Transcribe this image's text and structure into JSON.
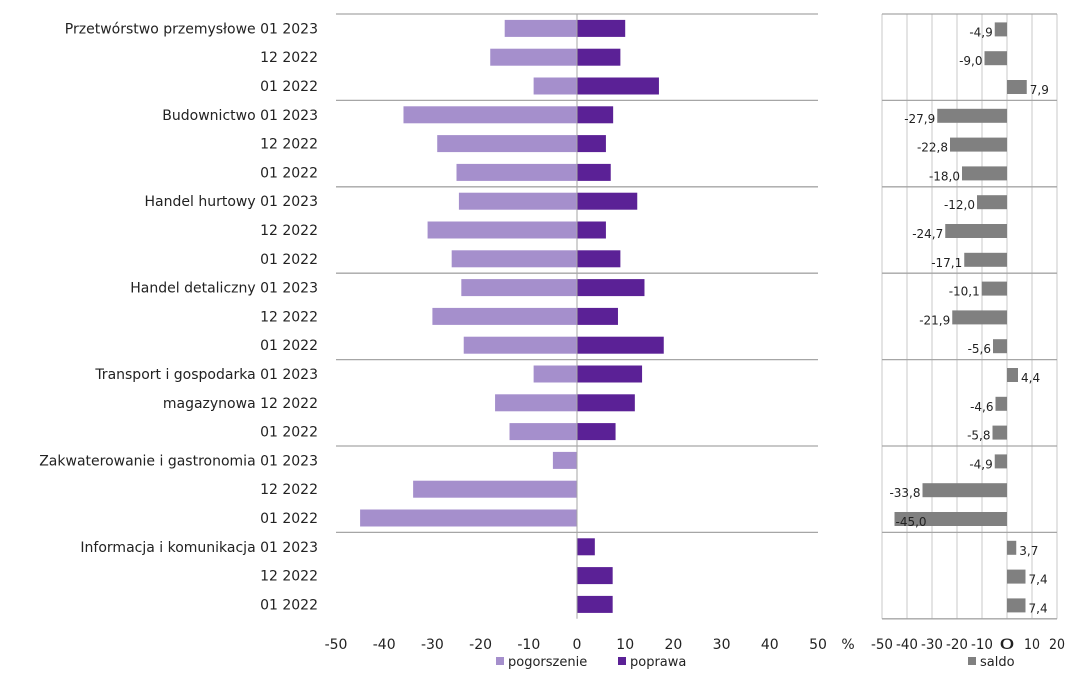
{
  "colors": {
    "pogorszenie": "#a58fcc",
    "poprawa": "#5b2196",
    "saldo": "#808080",
    "separator": "#a6a6a6",
    "grid": "#c8c8c8"
  },
  "chart_data": [
    {
      "type": "bar",
      "orientation": "horizontal",
      "stacked_diverging": true,
      "categories": [
        "Przetwórstwo przemysłowe 01 2023",
        "12 2022",
        "01 2022",
        "Budownictwo 01 2023",
        "12 2022",
        "01 2022",
        "Handel hurtowy 01 2023",
        "12 2022",
        "01 2022",
        "Handel detaliczny 01 2023",
        "12 2022",
        "01 2022",
        "Transport i gospodarka 01 2023",
        "magazynowa 12 2022",
        "01 2022",
        "Zakwaterowanie i gastronomia 01 2023",
        "12 2022",
        "01 2022",
        "Informacja i komunikacja 01 2023",
        "12 2022",
        "01 2022"
      ],
      "series": [
        {
          "name": "pogorszenie",
          "values": [
            -15,
            -18,
            -9,
            -36,
            -29,
            -25,
            -24.5,
            -31,
            -26,
            -24,
            -30,
            -23.5,
            -9,
            -17,
            -14,
            -5,
            -34,
            -45,
            0,
            0,
            0
          ]
        },
        {
          "name": "poprawa",
          "values": [
            10,
            9,
            17,
            7.5,
            6,
            7,
            12.5,
            6,
            9,
            14,
            8.5,
            18,
            13.5,
            12,
            8,
            0,
            0,
            0,
            3.7,
            7.4,
            7.4
          ]
        }
      ],
      "xlim": [
        -50,
        50
      ],
      "xticks": [
        "-50",
        "-40",
        "-30",
        "-20",
        "-10",
        "0",
        "10",
        "20",
        "30",
        "40",
        "50"
      ],
      "unit_label": "%",
      "legend_position": "bottom"
    },
    {
      "type": "bar",
      "orientation": "horizontal",
      "series": [
        {
          "name": "saldo",
          "values": [
            -4.9,
            -9.0,
            7.9,
            -27.9,
            -22.8,
            -18.0,
            -12.0,
            -24.7,
            -17.1,
            -10.1,
            -21.9,
            -5.6,
            4.4,
            -4.6,
            -5.8,
            -4.9,
            -33.8,
            -45.0,
            3.7,
            7.4,
            7.4
          ]
        }
      ],
      "data_labels": [
        "-4,9",
        "-9,0",
        "7,9",
        "-27,9",
        "-22,8",
        "-18,0",
        "-12,0",
        "-24,7",
        "-17,1",
        "-10,1",
        "-21,9",
        "-5,6",
        "4,4",
        "-4,6",
        "-5,8",
        "-4,9",
        "-33,8",
        "-45,0",
        "3,7",
        "7,4",
        "7,4"
      ],
      "xlim": [
        -50,
        20
      ],
      "xticks": [
        "-50",
        "-40",
        "-30",
        "-20",
        "-10",
        "0",
        "10",
        "20"
      ],
      "grid": true,
      "legend_position": "bottom"
    }
  ]
}
